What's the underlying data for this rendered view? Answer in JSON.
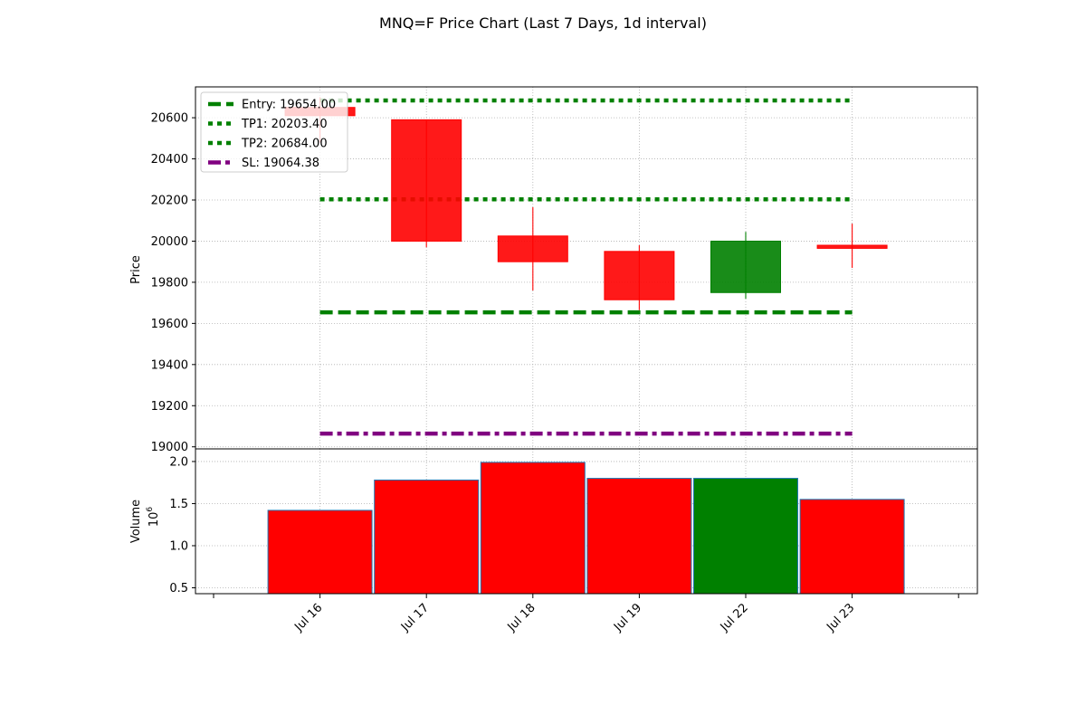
{
  "chart_data": {
    "type": "candlestick",
    "title": "MNQ=F Price Chart (Last 7 Days, 1d interval)",
    "x_labels": [
      "Jul 16",
      "Jul 17",
      "Jul 18",
      "Jul 19",
      "Jul 22",
      "Jul 23"
    ],
    "price": {
      "ylabel": "Price",
      "ylim": [
        18990,
        20750
      ],
      "yticks": [
        19000,
        19200,
        19400,
        19600,
        19800,
        20000,
        20200,
        20400,
        20600
      ],
      "grid": true,
      "candles": [
        {
          "date": "Jul 16",
          "open": 20650,
          "high": 20700,
          "low": 20480,
          "close": 20610,
          "color": "#ff0000"
        },
        {
          "date": "Jul 17",
          "open": 20590,
          "high": 20590,
          "low": 19970,
          "close": 20000,
          "color": "#ff0000"
        },
        {
          "date": "Jul 18",
          "open": 20025,
          "high": 20165,
          "low": 19760,
          "close": 19900,
          "color": "#ff0000"
        },
        {
          "date": "Jul 19",
          "open": 19950,
          "high": 19980,
          "low": 19665,
          "close": 19715,
          "color": "#ff0000"
        },
        {
          "date": "Jul 22",
          "open": 19750,
          "high": 20045,
          "low": 19720,
          "close": 20000,
          "color": "#008000"
        },
        {
          "date": "Jul 23",
          "open": 19980,
          "high": 20085,
          "low": 19870,
          "close": 19965,
          "color": "#ff0000"
        }
      ],
      "levels": [
        {
          "label": "Entry: 19654.00",
          "value": 19654.0,
          "color": "#008000",
          "style": "dashed"
        },
        {
          "label": "TP1: 20203.40",
          "value": 20203.4,
          "color": "#008000",
          "style": "dotted"
        },
        {
          "label": "TP2: 20684.00",
          "value": 20684.0,
          "color": "#008000",
          "style": "dotted"
        },
        {
          "label": "SL: 19064.38",
          "value": 19064.38,
          "color": "#800080",
          "style": "dashdot"
        }
      ],
      "legend_position": "top-left"
    },
    "volume": {
      "ylabel": "Volume",
      "multiplier_label": "10",
      "multiplier_exp": "6",
      "ylim": [
        0.43,
        2.15
      ],
      "yticks": [
        0.5,
        1.0,
        1.5,
        2.0
      ],
      "ytick_labels": [
        "0.5",
        "1.0",
        "1.5",
        "2.0"
      ],
      "grid": true,
      "values": [
        1.42,
        1.78,
        1.99,
        1.8,
        1.8,
        1.55
      ],
      "colors": [
        "#ff0000",
        "#ff0000",
        "#ff0000",
        "#ff0000",
        "#008000",
        "#ff0000"
      ]
    }
  }
}
